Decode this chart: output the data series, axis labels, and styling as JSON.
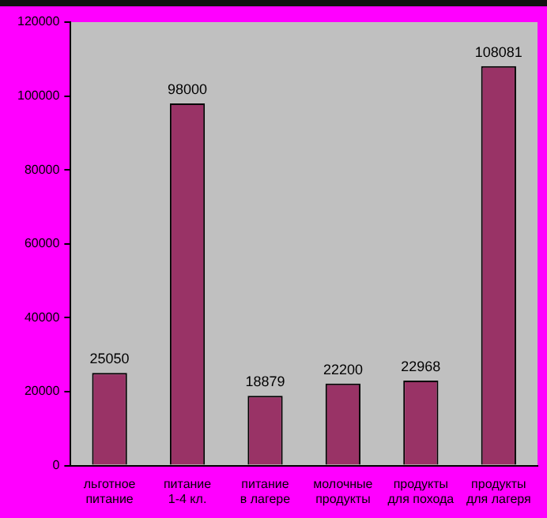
{
  "chart_data": {
    "type": "bar",
    "categories": [
      "льготное питание",
      "питание 1-4 кл.",
      "питание в лагере",
      "молочные продукты",
      "продукты для похода",
      "продукты для лагеря"
    ],
    "values": [
      25050,
      98000,
      18879,
      22200,
      22968,
      108081
    ],
    "color": "#993366",
    "ylim": [
      0,
      120000
    ],
    "yticks": [
      0,
      20000,
      40000,
      60000,
      80000,
      100000,
      120000
    ],
    "data_labels": true,
    "grid": false,
    "legend": false
  }
}
